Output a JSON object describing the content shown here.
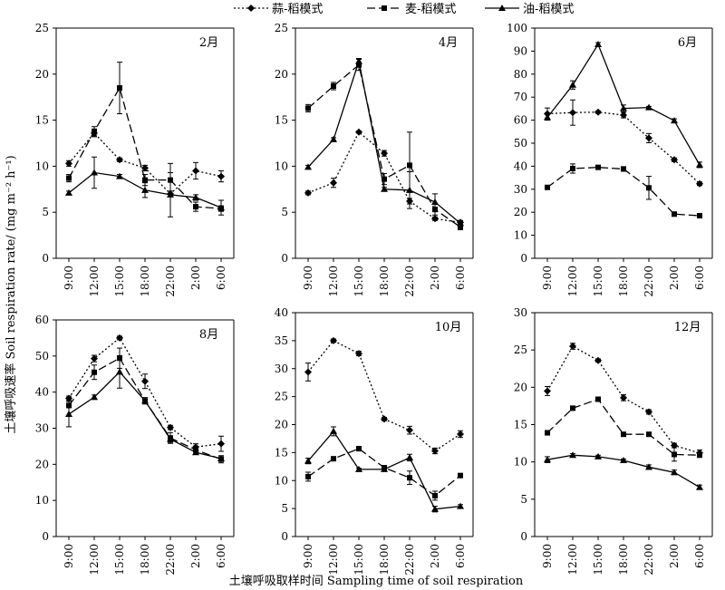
{
  "figure": {
    "ylabel": "土壤呼吸速率 Soil respiration rate/ (mg m⁻² h⁻¹)",
    "xlabel": "土壤呼吸取样时间 Sampling time of soil respiration"
  },
  "legend": [
    {
      "name": "蒜-稻模式",
      "style": "dotted",
      "marker": "diamond"
    },
    {
      "name": "麦-稻模式",
      "style": "dashed",
      "marker": "square"
    },
    {
      "name": "油-稻模式",
      "style": "solid",
      "marker": "triangle"
    }
  ],
  "chart_data": [
    {
      "type": "line",
      "title": "2月",
      "categories": [
        "9:00",
        "12:00",
        "15:00",
        "18:00",
        "22:00",
        "2:00",
        "6:00"
      ],
      "ylim": [
        0,
        25
      ],
      "yticks": [
        0,
        5,
        10,
        15,
        20,
        25
      ],
      "series": [
        {
          "name": "蒜-稻模式",
          "values": [
            10.3,
            13.6,
            10.7,
            9.8,
            7.0,
            9.5,
            8.9
          ],
          "errors": [
            0.3,
            0.4,
            0.2,
            0.3,
            0.3,
            0.9,
            0.6
          ]
        },
        {
          "name": "麦-稻模式",
          "values": [
            8.7,
            13.8,
            18.5,
            8.5,
            8.5,
            5.6,
            5.4
          ],
          "errors": [
            0.4,
            0.5,
            2.8,
            0.6,
            1.8,
            0.5,
            0.3
          ]
        },
        {
          "name": "油-稻模式",
          "values": [
            7.1,
            9.3,
            8.9,
            7.4,
            6.9,
            6.6,
            5.5
          ],
          "errors": [
            0.2,
            1.7,
            0.2,
            0.8,
            2.4,
            0.3,
            0.8
          ]
        }
      ]
    },
    {
      "type": "line",
      "title": "4月",
      "categories": [
        "9:00",
        "12:00",
        "15:00",
        "18:00",
        "22:00",
        "2:00",
        "6:00"
      ],
      "ylim": [
        0,
        25
      ],
      "yticks": [
        0,
        5,
        10,
        15,
        20,
        25
      ],
      "series": [
        {
          "name": "蒜-稻模式",
          "values": [
            7.1,
            8.2,
            13.7,
            11.4,
            6.2,
            4.3,
            3.9
          ],
          "errors": [
            0.2,
            0.5,
            0.1,
            0.3,
            0.3,
            0.2,
            0.2
          ]
        },
        {
          "name": "麦-稻模式",
          "values": [
            16.3,
            18.7,
            21.0,
            8.6,
            10.1,
            5.3,
            3.4
          ],
          "errors": [
            0.4,
            0.4,
            0.6,
            0.6,
            3.6,
            0.6,
            0.3
          ]
        },
        {
          "name": "油-稻模式",
          "values": [
            9.9,
            12.9,
            21.4,
            7.5,
            7.4,
            6.1,
            3.8
          ],
          "errors": [
            0.2,
            0.2,
            0.3,
            0.2,
            2.0,
            0.9,
            0.3
          ]
        }
      ]
    },
    {
      "type": "line",
      "title": "6月",
      "categories": [
        "9:00",
        "12:00",
        "15:00",
        "18:00",
        "22:00",
        "2:00",
        "6:00"
      ],
      "ylim": [
        0,
        100
      ],
      "yticks": [
        0,
        10,
        20,
        30,
        40,
        50,
        60,
        70,
        80,
        90,
        100
      ],
      "series": [
        {
          "name": "蒜-稻模式",
          "values": [
            62.8,
            63.3,
            63.5,
            62.2,
            52.2,
            42.8,
            32.4
          ],
          "errors": [
            2.5,
            5.5,
            0.5,
            1.2,
            2.0,
            0.8,
            0.8
          ]
        },
        {
          "name": "麦-稻模式",
          "values": [
            30.8,
            39.0,
            39.5,
            38.8,
            30.6,
            19.2,
            18.5
          ],
          "errors": [
            0.6,
            2.0,
            0.6,
            1.0,
            5.0,
            0.4,
            0.5
          ]
        },
        {
          "name": "油-稻模式",
          "values": [
            61.2,
            75.3,
            92.9,
            65.1,
            65.5,
            59.8,
            40.6
          ],
          "errors": [
            1.2,
            1.8,
            0.8,
            1.5,
            0.5,
            0.8,
            1.2
          ]
        }
      ]
    },
    {
      "type": "line",
      "title": "8月",
      "categories": [
        "9:00",
        "12:00",
        "15:00",
        "18:00",
        "22:00",
        "2:00",
        "6:00"
      ],
      "ylim": [
        0,
        60
      ],
      "yticks": [
        0,
        10,
        20,
        30,
        40,
        50,
        60
      ],
      "series": [
        {
          "name": "蒜-稻模式",
          "values": [
            38.3,
            49.3,
            55.0,
            43.0,
            30.2,
            24.8,
            25.7
          ],
          "errors": [
            0.6,
            0.9,
            0.5,
            2.0,
            0.6,
            0.9,
            2.1
          ]
        },
        {
          "name": "麦-稻模式",
          "values": [
            36.3,
            45.5,
            49.4,
            37.6,
            27.3,
            24.0,
            21.4
          ],
          "errors": [
            0.6,
            2.0,
            2.8,
            0.9,
            1.5,
            0.6,
            1.0
          ]
        },
        {
          "name": "油-稻模式",
          "values": [
            33.9,
            38.6,
            45.6,
            37.6,
            27.0,
            23.3,
            21.6
          ],
          "errors": [
            3.5,
            0.6,
            4.5,
            0.5,
            0.9,
            0.4,
            0.5
          ]
        }
      ]
    },
    {
      "type": "line",
      "title": "10月",
      "categories": [
        "9:00",
        "12:00",
        "15:00",
        "18:00",
        "22:00",
        "2:00",
        "6:00"
      ],
      "ylim": [
        0,
        40
      ],
      "yticks": [
        0,
        5,
        10,
        15,
        20,
        25,
        30,
        35,
        40
      ],
      "series": [
        {
          "name": "蒜-稻模式",
          "values": [
            29.4,
            35.0,
            32.7,
            21.0,
            19.0,
            15.3,
            18.3
          ],
          "errors": [
            1.6,
            0.3,
            0.4,
            0.3,
            0.7,
            0.5,
            0.6
          ]
        },
        {
          "name": "麦-稻模式",
          "values": [
            10.7,
            13.9,
            15.7,
            12.3,
            10.5,
            7.3,
            10.9
          ],
          "errors": [
            0.8,
            0.3,
            0.4,
            0.3,
            1.2,
            0.8,
            0.3
          ]
        },
        {
          "name": "油-稻模式",
          "values": [
            13.5,
            18.8,
            12.0,
            12.0,
            14.1,
            4.9,
            5.4
          ],
          "errors": [
            0.5,
            0.8,
            0.2,
            0.3,
            0.6,
            0.5,
            0.3
          ]
        }
      ]
    },
    {
      "type": "line",
      "title": "12月",
      "categories": [
        "9:00",
        "12:00",
        "15:00",
        "18:00",
        "22:00",
        "2:00",
        "6:00"
      ],
      "ylim": [
        0,
        30
      ],
      "yticks": [
        0,
        5,
        10,
        15,
        20,
        25,
        30
      ],
      "series": [
        {
          "name": "蒜-稻模式",
          "values": [
            19.5,
            25.5,
            23.6,
            18.6,
            16.7,
            12.2,
            11.2
          ],
          "errors": [
            0.6,
            0.4,
            0.2,
            0.4,
            0.3,
            0.3,
            0.4
          ]
        },
        {
          "name": "麦-稻模式",
          "values": [
            13.9,
            17.2,
            18.4,
            13.7,
            13.7,
            11.0,
            10.9
          ],
          "errors": [
            0.3,
            0.2,
            0.2,
            0.2,
            0.2,
            0.9,
            0.2
          ]
        },
        {
          "name": "油-稻模式",
          "values": [
            10.3,
            10.9,
            10.7,
            10.2,
            9.3,
            8.6,
            6.6
          ],
          "errors": [
            0.4,
            0.2,
            0.2,
            0.2,
            0.3,
            0.3,
            0.3
          ]
        }
      ]
    }
  ]
}
